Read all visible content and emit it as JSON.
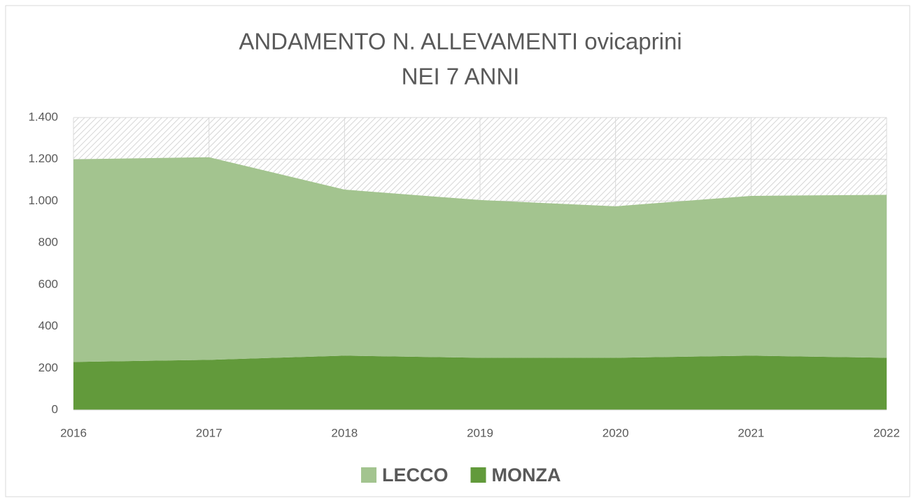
{
  "chart_data": {
    "type": "area",
    "stacked": true,
    "title": [
      "ANDAMENTO N. ALLEVAMENTI ovicaprini",
      "NEI 7 ANNI"
    ],
    "categories": [
      "2016",
      "2017",
      "2018",
      "2019",
      "2020",
      "2021",
      "2022"
    ],
    "series": [
      {
        "name": "MONZA",
        "color": "#629a3b",
        "values": [
          230,
          240,
          260,
          250,
          250,
          260,
          250
        ]
      },
      {
        "name": "LECCO",
        "color": "#a3c48f",
        "values": [
          970,
          970,
          795,
          755,
          725,
          765,
          780
        ]
      }
    ],
    "legend_order": [
      "LECCO",
      "MONZA"
    ],
    "ylim": [
      0,
      1400
    ],
    "yticks": [
      0,
      200,
      400,
      600,
      800,
      {
        "value": 1000,
        "label": "1.000"
      },
      {
        "value": 1200,
        "label": "1.200"
      },
      {
        "value": 1400,
        "label": "1.400"
      }
    ],
    "grid": true,
    "legend": "bottom"
  }
}
